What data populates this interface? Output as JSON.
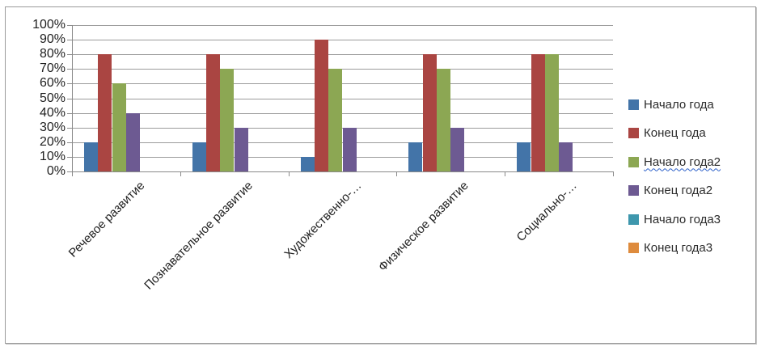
{
  "frame": {
    "background": "#ffffff",
    "border_color": "#9b9b9b"
  },
  "chart_data": {
    "type": "bar",
    "title": "",
    "categories": [
      "Речевое развитие",
      "Познавательное развитие",
      "Художественно-…",
      "Физическое развитие",
      "Социально-…"
    ],
    "series": [
      {
        "name": "Начало года",
        "color": "#4374A8",
        "values": [
          20,
          20,
          10,
          20,
          20
        ]
      },
      {
        "name": "Конец года",
        "color": "#AA4542",
        "values": [
          80,
          80,
          90,
          80,
          80
        ]
      },
      {
        "name": "Начало года2",
        "color": "#8CA753",
        "values": [
          60,
          70,
          70,
          70,
          80
        ],
        "wavy_underline": true
      },
      {
        "name": "Конец года2",
        "color": "#6D5A92",
        "values": [
          40,
          30,
          30,
          30,
          20
        ]
      },
      {
        "name": "Начало года3",
        "color": "#3E97AD",
        "values": [
          0,
          0,
          0,
          0,
          0
        ]
      },
      {
        "name": "Конец года3",
        "color": "#DE8B3D",
        "values": [
          0,
          0,
          0,
          0,
          0
        ]
      }
    ],
    "y_axis": {
      "min": 0,
      "max": 100,
      "step": 10,
      "tick_labels": [
        "0%",
        "10%",
        "20%",
        "30%",
        "40%",
        "50%",
        "60%",
        "70%",
        "80%",
        "90%",
        "100%"
      ]
    },
    "x_axis": {
      "label_rotation_deg": 45
    },
    "legend": {
      "position": "right"
    },
    "grid": true,
    "gridline_color": "#9c9c9c",
    "axis_line_color": "#8a8a8a",
    "text_color": "#1f1f1f"
  }
}
